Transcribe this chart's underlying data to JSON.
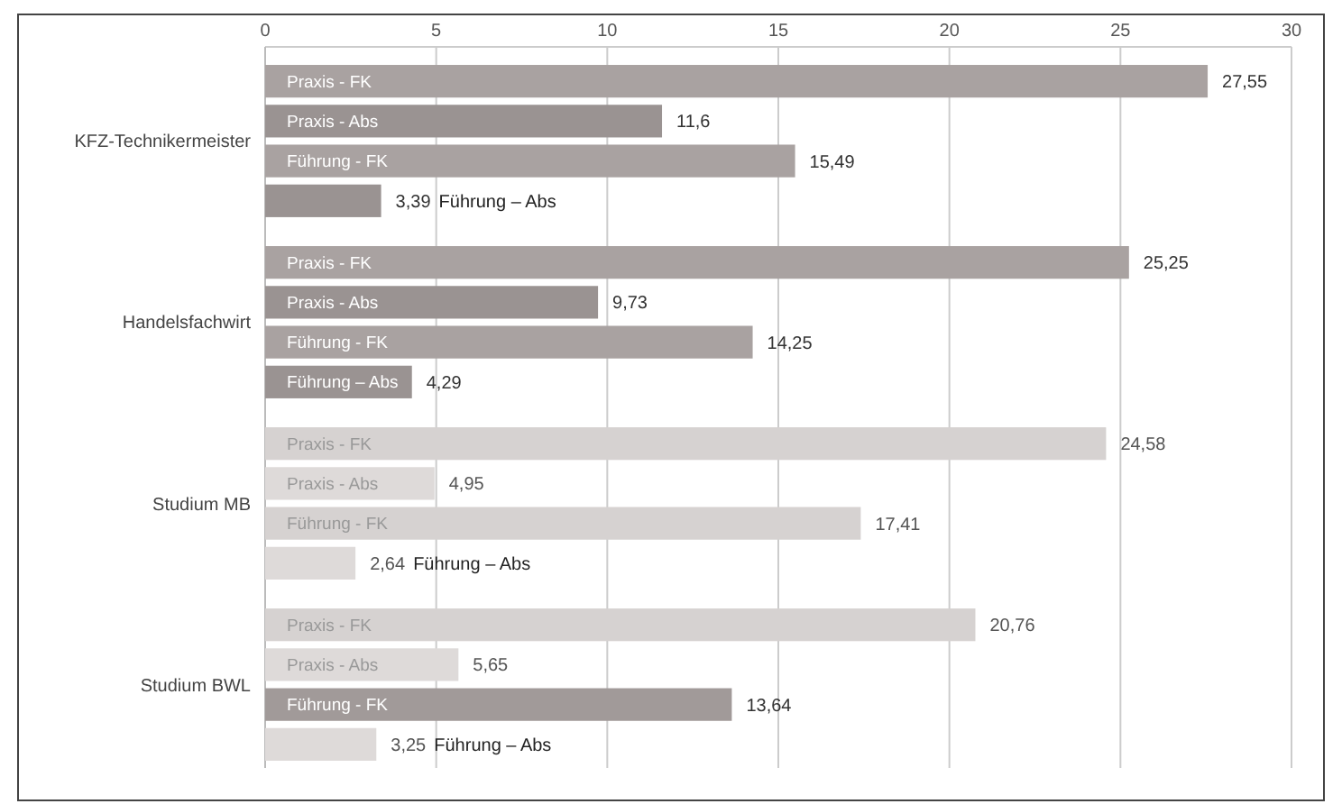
{
  "chart_data": {
    "type": "bar",
    "orientation": "horizontal",
    "categories": [
      "KFZ-Technikermeister",
      "Handelsfachwirt",
      "Studium MB",
      "Studium BWL"
    ],
    "series": [
      {
        "name": "Praxis - FK",
        "colors": [
          "#a9a2a1",
          "#a9a2a1",
          "#d6d2d1",
          "#d6d2d1"
        ],
        "values": [
          27.55,
          25.25,
          24.58,
          20.76
        ],
        "value_labels": [
          "27,55",
          "25,25",
          "24,58",
          "20,76"
        ]
      },
      {
        "name": "Praxis - Abs",
        "colors": [
          "#9a9392",
          "#9a9392",
          "#dedad9",
          "#dedad9"
        ],
        "values": [
          11.6,
          9.73,
          4.95,
          5.65
        ],
        "value_labels": [
          "11,6",
          "9,73",
          "4,95",
          "5,65"
        ]
      },
      {
        "name": "Führung - FK",
        "colors": [
          "#a9a2a1",
          "#a9a2a1",
          "#d6d2d1",
          "#a19a99"
        ],
        "values": [
          15.49,
          14.25,
          17.41,
          13.64
        ],
        "value_labels": [
          "15,49",
          "14,25",
          "17,41",
          "13,64"
        ]
      },
      {
        "name": "Führung – Abs",
        "colors": [
          "#9a9392",
          "#9a9392",
          "#dedad9",
          "#dedad9"
        ],
        "values": [
          3.39,
          4.29,
          2.64,
          3.25
        ],
        "value_labels": [
          "3,39",
          "4,29",
          "2,64",
          "3,25"
        ]
      }
    ],
    "xlim": [
      0,
      30
    ],
    "xticks": [
      0,
      5,
      10,
      15,
      20,
      25,
      30
    ],
    "grid": "x"
  }
}
